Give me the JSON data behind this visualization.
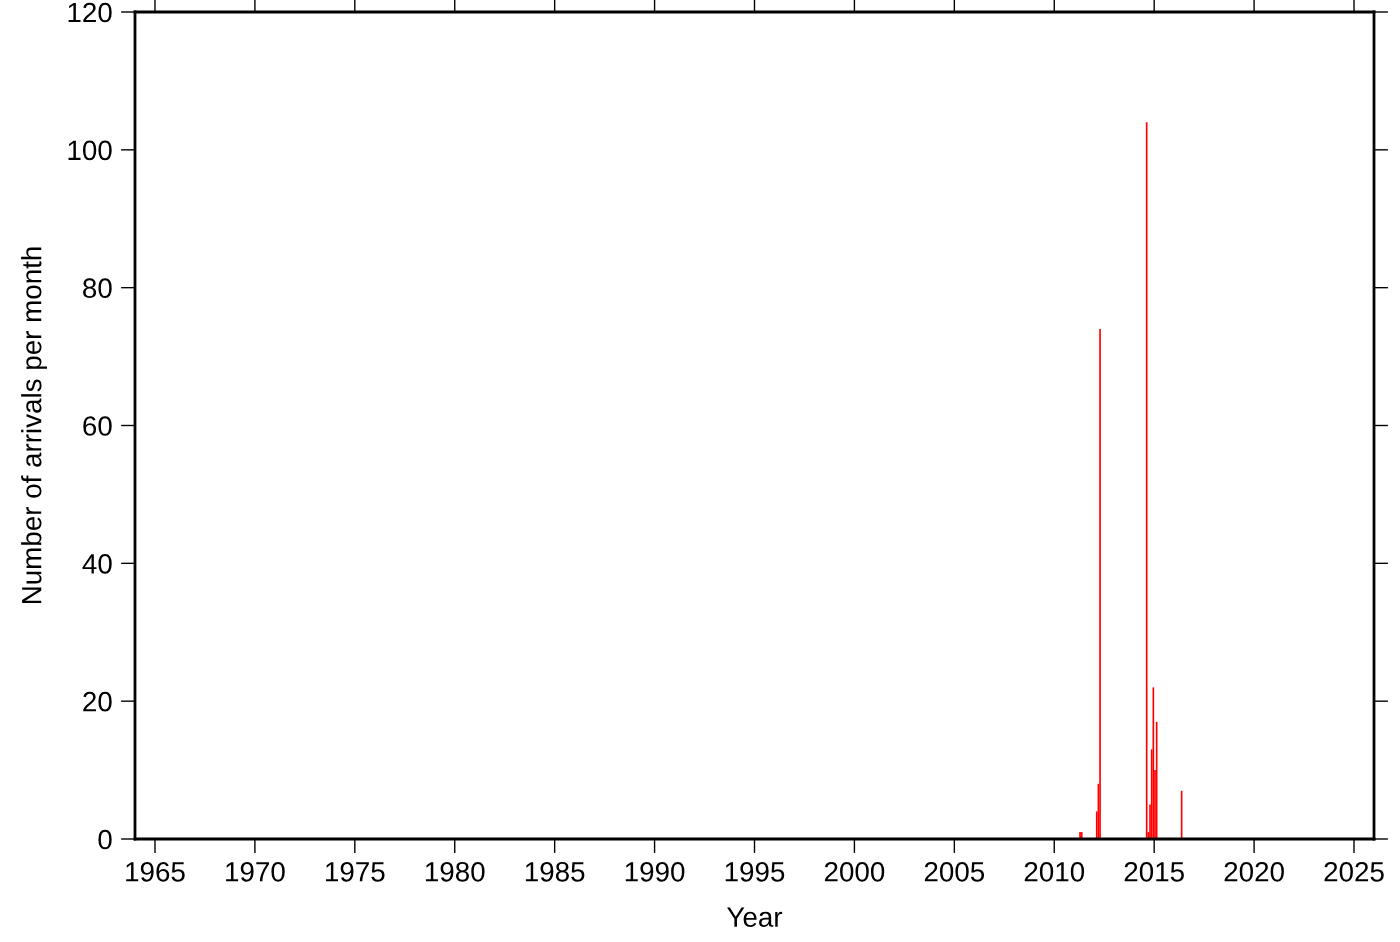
{
  "chart_data": {
    "type": "bar",
    "xlabel": "Year",
    "ylabel": "Number of arrivals per month",
    "x": [
      "2011-04",
      "2011-05",
      "2012-02",
      "2012-03",
      "2012-04",
      "2014-08",
      "2014-09",
      "2014-10",
      "2014-11",
      "2014-12",
      "2015-01",
      "2015-02",
      "2016-05"
    ],
    "series": [
      {
        "color": "#ff0000",
        "values": [
          1,
          1,
          4,
          8,
          74,
          104,
          1,
          5,
          13,
          22,
          10,
          17,
          7
        ]
      }
    ],
    "xlim": [
      "1964",
      "2026"
    ],
    "xticks": [
      "1965",
      "1970",
      "1975",
      "1980",
      "1985",
      "1990",
      "1995",
      "2000",
      "2005",
      "2010",
      "2015",
      "2020",
      "2025"
    ],
    "ylim": [
      0,
      120
    ],
    "yticks": [
      0,
      20,
      40,
      60,
      80,
      100,
      120
    ]
  }
}
